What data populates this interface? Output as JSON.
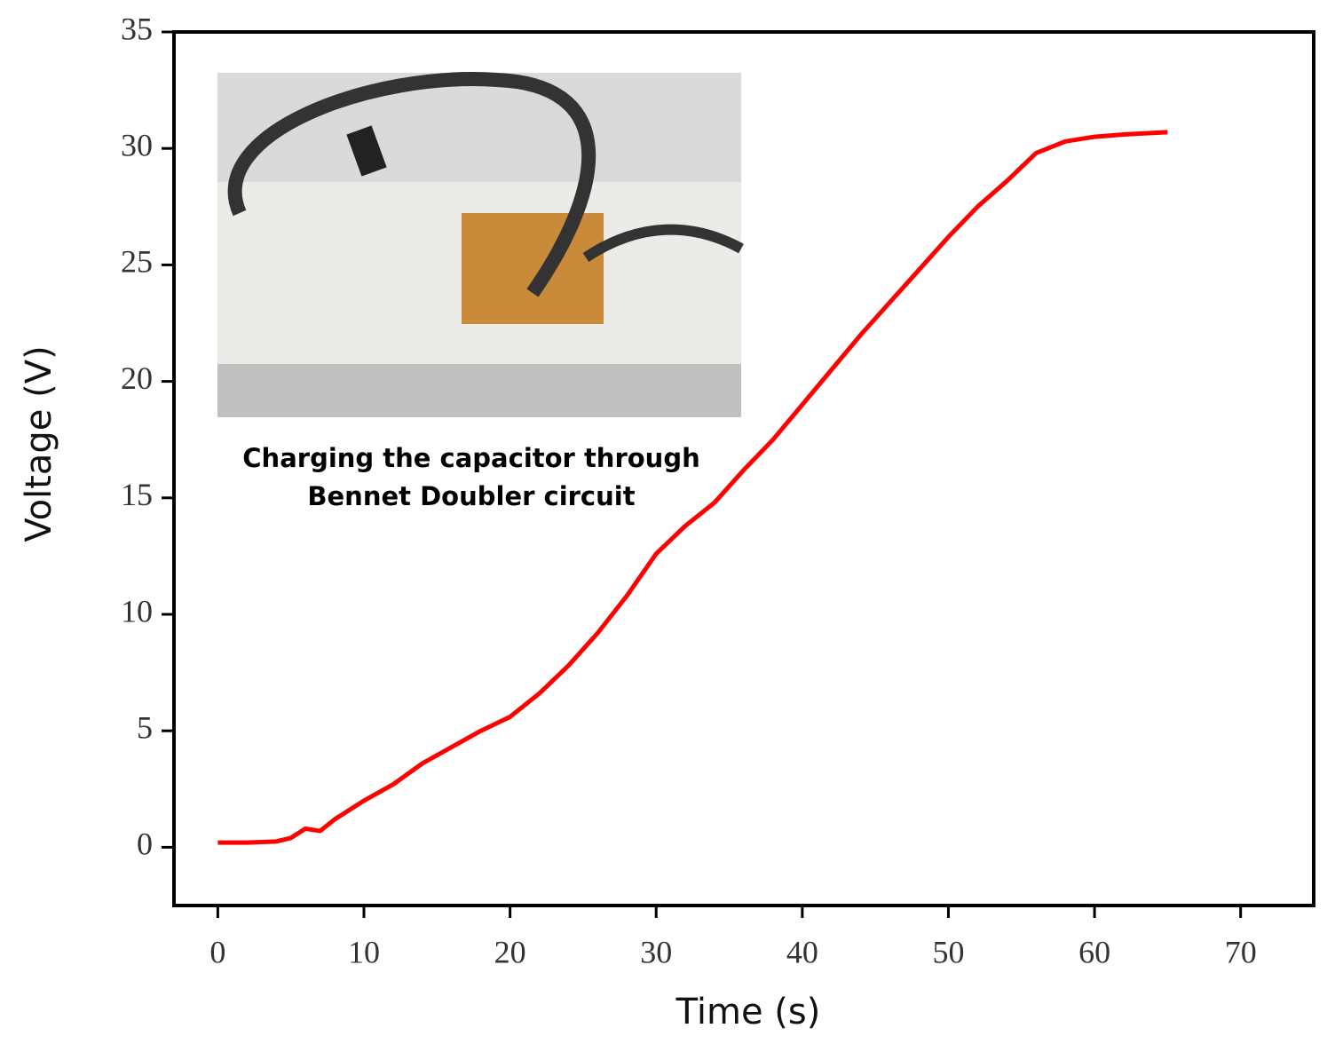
{
  "chart_data": {
    "type": "line",
    "x_label": "Time (s)",
    "y_label": "Voltage (V)",
    "annotation": [
      "Charging the capacitor through",
      "Bennet Doubler circuit"
    ],
    "x": [
      0,
      2,
      4,
      5,
      6,
      7,
      8,
      10,
      12,
      14,
      16,
      18,
      20,
      22,
      24,
      26,
      28,
      30,
      32,
      34,
      36,
      38,
      40,
      42,
      44,
      46,
      48,
      50,
      52,
      54,
      56,
      58,
      60,
      62,
      65
    ],
    "series": [
      {
        "color": "#ff0000",
        "values": [
          0.2,
          0.2,
          0.25,
          0.4,
          0.8,
          0.7,
          1.2,
          2.0,
          2.7,
          3.6,
          4.3,
          5.0,
          5.6,
          6.6,
          7.8,
          9.2,
          10.8,
          12.6,
          13.8,
          14.8,
          16.2,
          17.5,
          19.0,
          20.5,
          22.0,
          23.4,
          24.8,
          26.2,
          27.5,
          28.6,
          29.8,
          30.3,
          30.5,
          30.6,
          30.7
        ]
      }
    ],
    "xlim": [
      -3,
      75
    ],
    "ylim": [
      -2.5,
      35
    ],
    "xticks": [
      0,
      10,
      20,
      30,
      40,
      50,
      60,
      70
    ],
    "yticks": [
      0,
      5,
      10,
      15,
      20,
      25,
      30,
      35
    ]
  }
}
